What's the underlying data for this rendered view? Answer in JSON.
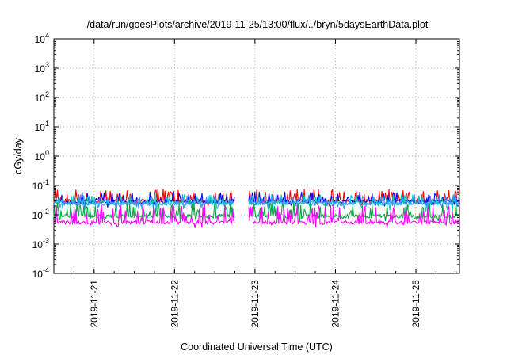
{
  "chart_data": {
    "type": "line",
    "title": "/data/run/goesPlots/archive/2019-11-25/13:00/flux/../bryn/5daysEarthData.plot",
    "xlabel": "Coordinated Universal Time (UTC)",
    "ylabel": "cGy/day",
    "yscale": "log",
    "ylim": [
      0.0001,
      10000
    ],
    "xlim": [
      "2019-11-20 12:00",
      "2019-11-25 13:00"
    ],
    "x_ticks": [
      "2019-11-21",
      "2019-11-22",
      "2019-11-23",
      "2019-11-24",
      "2019-11-25"
    ],
    "y_ticks": [
      {
        "value": 0.0001,
        "base": "10",
        "exp": "-4"
      },
      {
        "value": 0.001,
        "base": "10",
        "exp": "-3"
      },
      {
        "value": 0.01,
        "base": "10",
        "exp": "-2"
      },
      {
        "value": 0.1,
        "base": "10",
        "exp": "-1"
      },
      {
        "value": 1,
        "base": "10",
        "exp": "0"
      },
      {
        "value": 10,
        "base": "10",
        "exp": "1"
      },
      {
        "value": 100,
        "base": "10",
        "exp": "2"
      },
      {
        "value": 1000,
        "base": "10",
        "exp": "3"
      },
      {
        "value": 10000,
        "base": "10",
        "exp": "4"
      }
    ],
    "grid": true,
    "legend": "none",
    "gap": [
      "2019-11-22 18:00",
      "2019-11-22 22:00"
    ],
    "series": [
      {
        "color": "#ff0000",
        "baseline": 0.03,
        "spike_max": 0.075,
        "dip_min": 0.02
      },
      {
        "color": "#0000ff",
        "baseline": 0.028,
        "spike_max": 0.06,
        "dip_min": 0.018
      },
      {
        "color": "#00cccc",
        "baseline": 0.025,
        "spike_max": 0.05,
        "dip_min": 0.012
      },
      {
        "color": "#3399ff",
        "baseline": 0.024,
        "spike_max": 0.05,
        "dip_min": 0.014
      },
      {
        "color": "#00aa44",
        "baseline": 0.009,
        "spike_max": 0.025,
        "dip_min": 0.006
      },
      {
        "color": "#ff00ff",
        "baseline": 0.0055,
        "spike_max": 0.022,
        "dip_min": 0.0035
      }
    ]
  }
}
